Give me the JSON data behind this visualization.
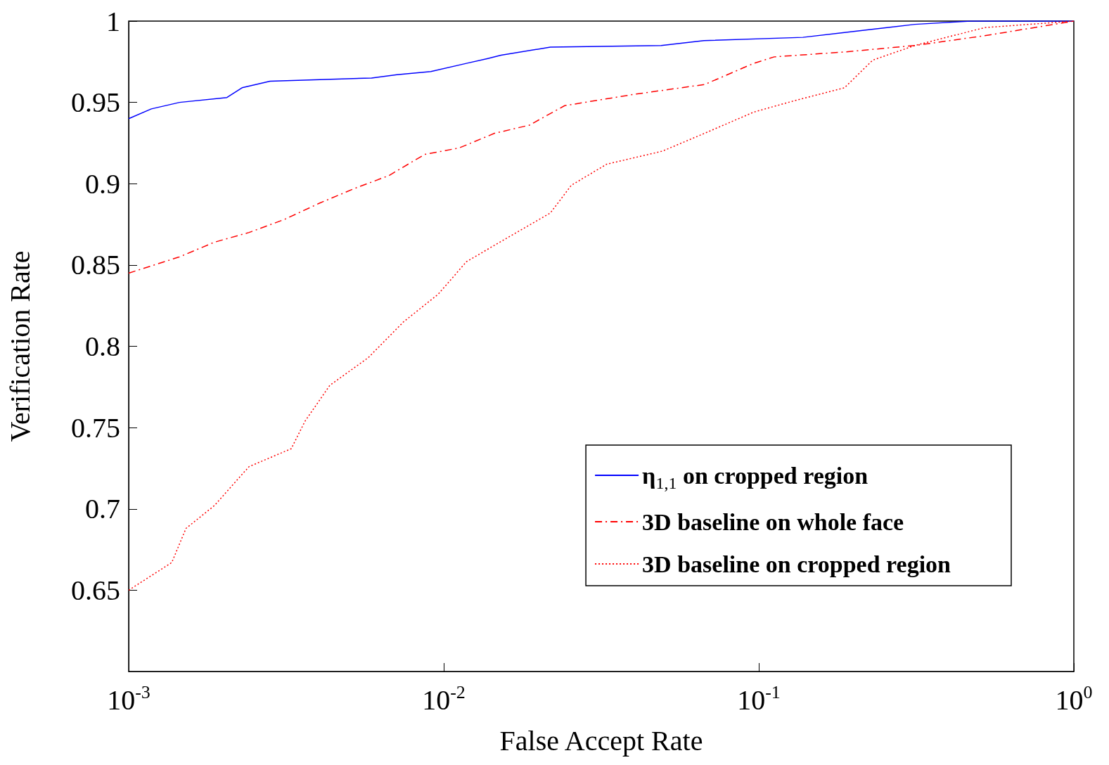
{
  "chart_data": {
    "type": "line",
    "xlabel": "False Accept Rate",
    "ylabel": "Verification Rate",
    "log": "x",
    "xlim": [
      0.001,
      1
    ],
    "ylim": [
      0.6,
      1
    ],
    "xticks": [
      {
        "value": 0.001,
        "label": "10$^{-3}$"
      },
      {
        "value": 0.01,
        "label": "10$^{-2}$"
      },
      {
        "value": 0.1,
        "label": "10$^{-1}$"
      },
      {
        "value": 1,
        "label": "10$^{0}$"
      }
    ],
    "yticks": [
      0.65,
      0.7,
      0.75,
      0.8,
      0.85,
      0.9,
      0.95,
      1
    ],
    "grid": false,
    "legend": "bottom right",
    "marker": "none",
    "series": [
      {
        "name": "η$_{1,1}$ on cropped region",
        "color": "#0000ff",
        "line_style": "solid",
        "x": [
          0.001,
          0.00118,
          0.00145,
          0.00205,
          0.00229,
          0.00281,
          0.0059,
          0.0071,
          0.0091,
          0.0118,
          0.0138,
          0.0152,
          0.0218,
          0.049,
          0.067,
          0.138,
          0.187,
          0.313,
          0.47,
          1
        ],
        "values": [
          0.94,
          0.946,
          0.95,
          0.953,
          0.959,
          0.963,
          0.965,
          0.967,
          0.969,
          0.974,
          0.977,
          0.979,
          0.984,
          0.985,
          0.988,
          0.99,
          0.993,
          0.998,
          1,
          1
        ]
      },
      {
        "name": "3D baseline on whole face",
        "color": "#ff0000",
        "line_style": "dashed",
        "x": [
          0.001,
          0.00145,
          0.00187,
          0.00241,
          0.00312,
          0.00403,
          0.0052,
          0.0067,
          0.0087,
          0.0112,
          0.0145,
          0.0187,
          0.0242,
          0.0403,
          0.0673,
          0.0963,
          0.112,
          0.187,
          0.313,
          0.521,
          1
        ],
        "values": [
          0.845,
          0.855,
          0.864,
          0.87,
          0.878,
          0.888,
          0.897,
          0.905,
          0.918,
          0.922,
          0.931,
          0.936,
          0.948,
          0.955,
          0.961,
          0.974,
          0.978,
          0.981,
          0.985,
          0.991,
          1
        ]
      },
      {
        "name": "3D baseline on cropped region",
        "color": "#ff0000",
        "line_style": "dotted",
        "x": [
          0.001,
          0.00137,
          0.00152,
          0.00187,
          0.00241,
          0.00328,
          0.00363,
          0.00435,
          0.00576,
          0.00745,
          0.0096,
          0.0118,
          0.016,
          0.0218,
          0.0254,
          0.0329,
          0.0494,
          0.0673,
          0.0963,
          0.124,
          0.187,
          0.23,
          0.313,
          0.521,
          1
        ],
        "values": [
          0.65,
          0.667,
          0.688,
          0.702,
          0.726,
          0.737,
          0.754,
          0.776,
          0.793,
          0.815,
          0.832,
          0.852,
          0.867,
          0.882,
          0.899,
          0.912,
          0.92,
          0.931,
          0.944,
          0.95,
          0.959,
          0.976,
          0.985,
          0.996,
          1
        ]
      }
    ]
  }
}
